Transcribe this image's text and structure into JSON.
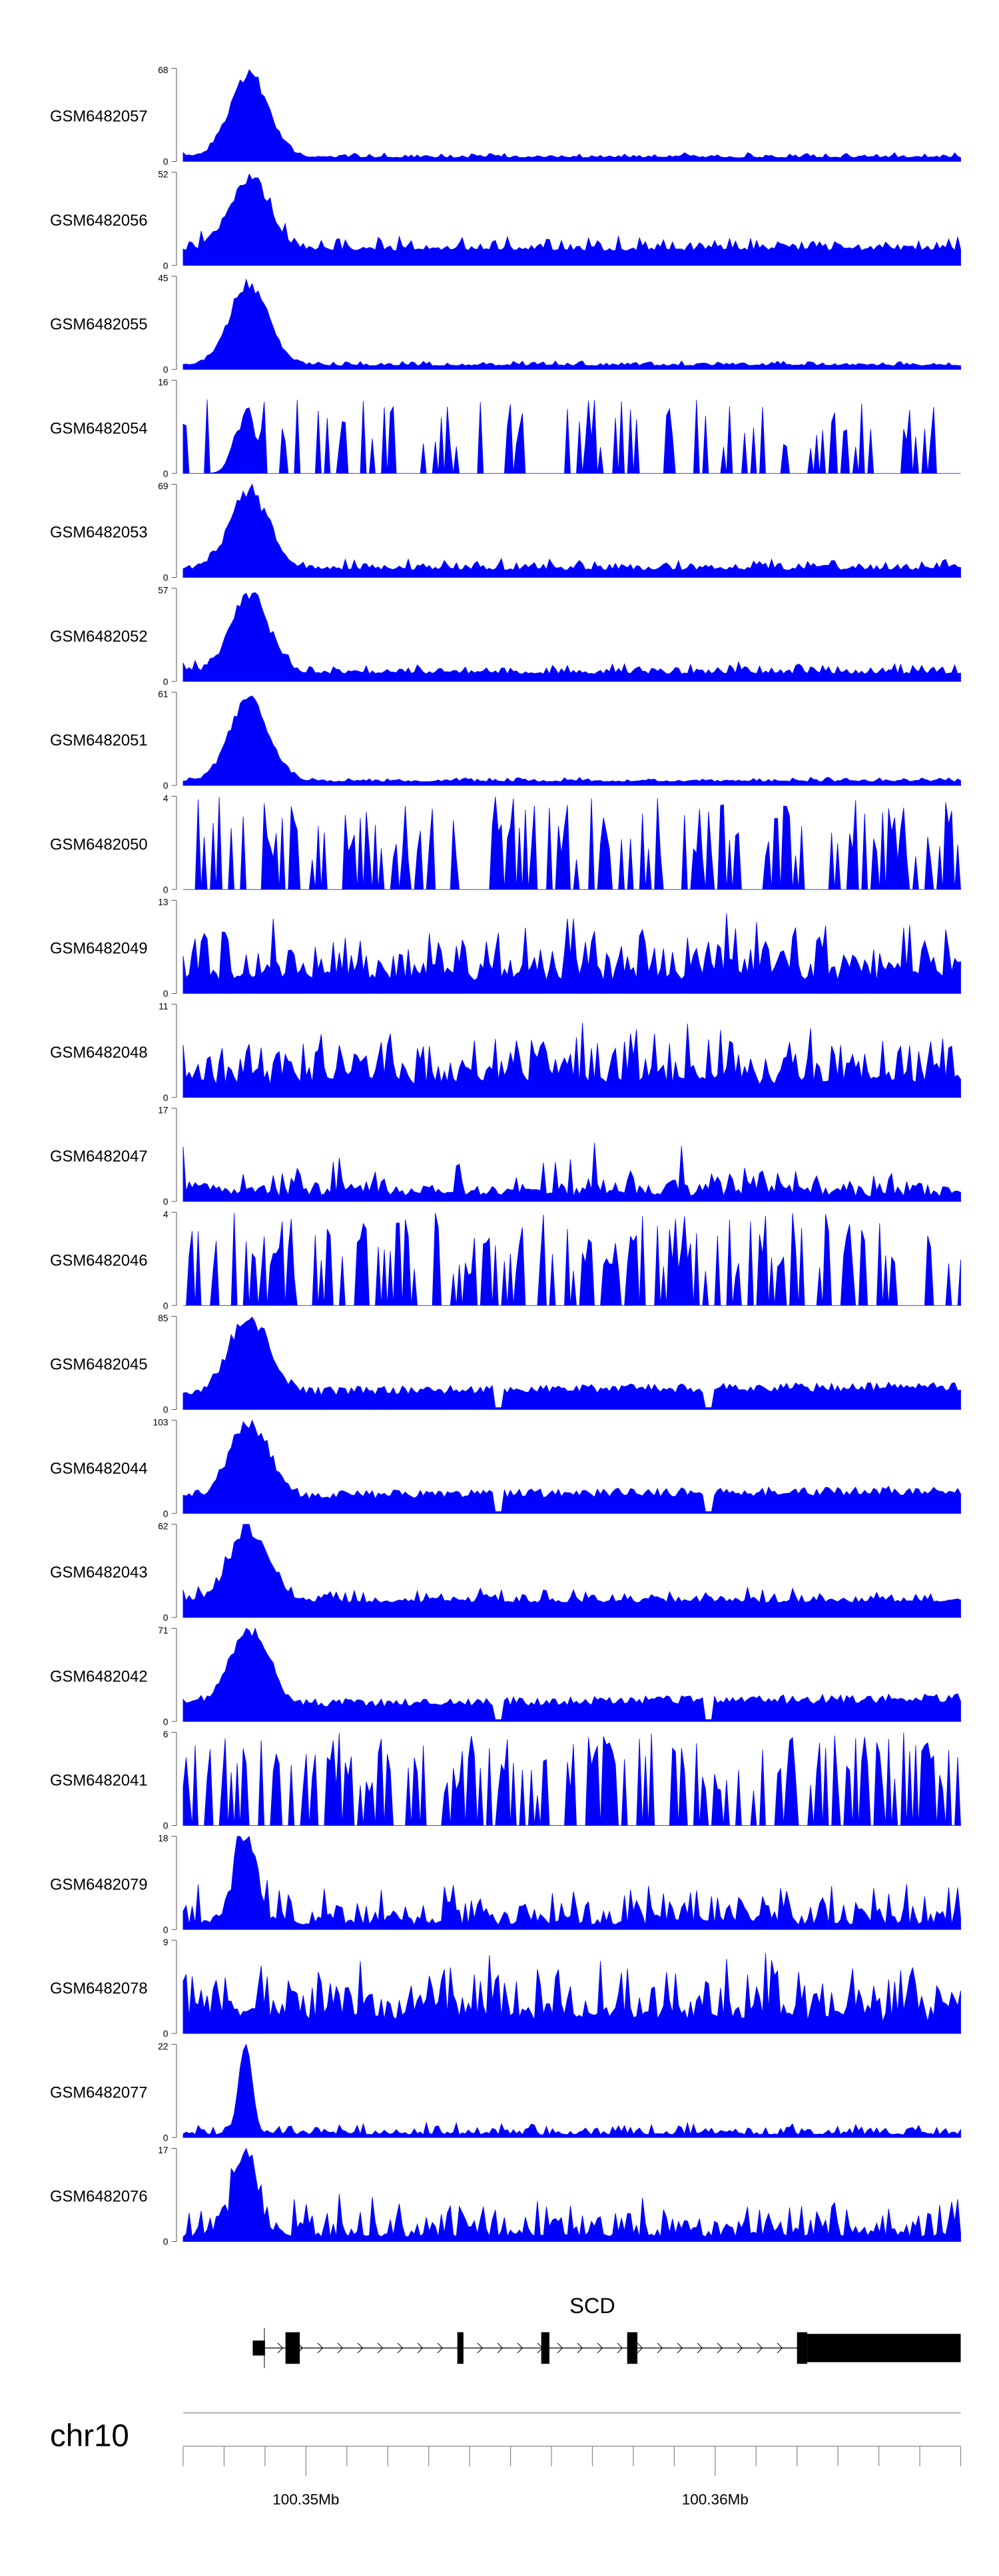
{
  "chart_data": {
    "type": "area",
    "color": "#0000ff",
    "x_range": [
      100347000,
      100366000
    ],
    "tracks": [
      {
        "name": "GSM6482057",
        "ymax": "68",
        "ymin": "0",
        "profile": "early_peak",
        "seed": 57
      },
      {
        "name": "GSM6482056",
        "ymax": "52",
        "ymin": "0",
        "profile": "early_peak_high_bg",
        "seed": 56
      },
      {
        "name": "GSM6482055",
        "ymax": "45",
        "ymin": "0",
        "profile": "early_peak",
        "seed": 55
      },
      {
        "name": "GSM6482054",
        "ymax": "16",
        "ymin": "0",
        "profile": "sparse_peaks",
        "seed": 54
      },
      {
        "name": "GSM6482053",
        "ymax": "69",
        "ymin": "0",
        "profile": "early_peak_mid_bg",
        "seed": 53
      },
      {
        "name": "GSM6482052",
        "ymax": "57",
        "ymin": "0",
        "profile": "early_peak_mid_bg",
        "seed": 52
      },
      {
        "name": "GSM6482051",
        "ymax": "61",
        "ymin": "0",
        "profile": "early_peak",
        "seed": 51
      },
      {
        "name": "GSM6482050",
        "ymax": "4",
        "ymin": "0",
        "profile": "spiky",
        "seed": 50
      },
      {
        "name": "GSM6482049",
        "ymax": "13",
        "ymin": "0",
        "profile": "noisy",
        "seed": 49
      },
      {
        "name": "GSM6482048",
        "ymax": "11",
        "ymin": "0",
        "profile": "noisy",
        "seed": 48
      },
      {
        "name": "GSM6482047",
        "ymax": "17",
        "ymin": "0",
        "profile": "noisy_low",
        "seed": 47
      },
      {
        "name": "GSM6482046",
        "ymax": "4",
        "ymin": "0",
        "profile": "spiky",
        "seed": 46
      },
      {
        "name": "GSM6482045",
        "ymax": "85",
        "ymin": "0",
        "profile": "early_peak_steady_bg",
        "seed": 45
      },
      {
        "name": "GSM6482044",
        "ymax": "103",
        "ymin": "0",
        "profile": "early_peak_steady_bg",
        "seed": 44
      },
      {
        "name": "GSM6482043",
        "ymax": "62",
        "ymin": "0",
        "profile": "early_peak_high_bg",
        "seed": 43
      },
      {
        "name": "GSM6482042",
        "ymax": "71",
        "ymin": "0",
        "profile": "early_peak_steady_bg",
        "seed": 42
      },
      {
        "name": "GSM6482041",
        "ymax": "6",
        "ymin": "0",
        "profile": "spiky",
        "seed": 41
      },
      {
        "name": "GSM6482079",
        "ymax": "18",
        "ymin": "0",
        "profile": "noisy_peak",
        "seed": 79
      },
      {
        "name": "GSM6482078",
        "ymax": "9",
        "ymin": "0",
        "profile": "noisy",
        "seed": 78
      },
      {
        "name": "GSM6482077",
        "ymax": "22",
        "ymin": "0",
        "profile": "single_peak_low",
        "seed": 77
      },
      {
        "name": "GSM6482076",
        "ymax": "17",
        "ymin": "0",
        "profile": "noisy_peak",
        "seed": 76
      }
    ],
    "gene": {
      "name": "SCD",
      "strand": "+",
      "start": 100348700,
      "end": 100366000,
      "exons": [
        {
          "start": 100348700,
          "end": 100349000,
          "height": "utr"
        },
        {
          "start": 100349500,
          "end": 100349850,
          "height": "cds"
        },
        {
          "start": 100353700,
          "end": 100353850,
          "height": "cds"
        },
        {
          "start": 100355750,
          "end": 100355950,
          "height": "cds"
        },
        {
          "start": 100357850,
          "end": 100358100,
          "height": "cds"
        },
        {
          "start": 100362000,
          "end": 100362250,
          "height": "cds"
        },
        {
          "start": 100362250,
          "end": 100366000,
          "height": "utr_thick"
        }
      ]
    },
    "chromosome": "chr10",
    "axis": {
      "ticks": [
        100347000,
        100348000,
        100349000,
        100350000,
        100351000,
        100352000,
        100353000,
        100354000,
        100355000,
        100356000,
        100357000,
        100358000,
        100359000,
        100360000,
        100361000,
        100362000,
        100363000,
        100364000,
        100365000,
        100366000
      ],
      "labels": [
        {
          "pos": 100350000,
          "text": "100.35Mb"
        },
        {
          "pos": 100360000,
          "text": "100.36Mb"
        }
      ]
    }
  }
}
